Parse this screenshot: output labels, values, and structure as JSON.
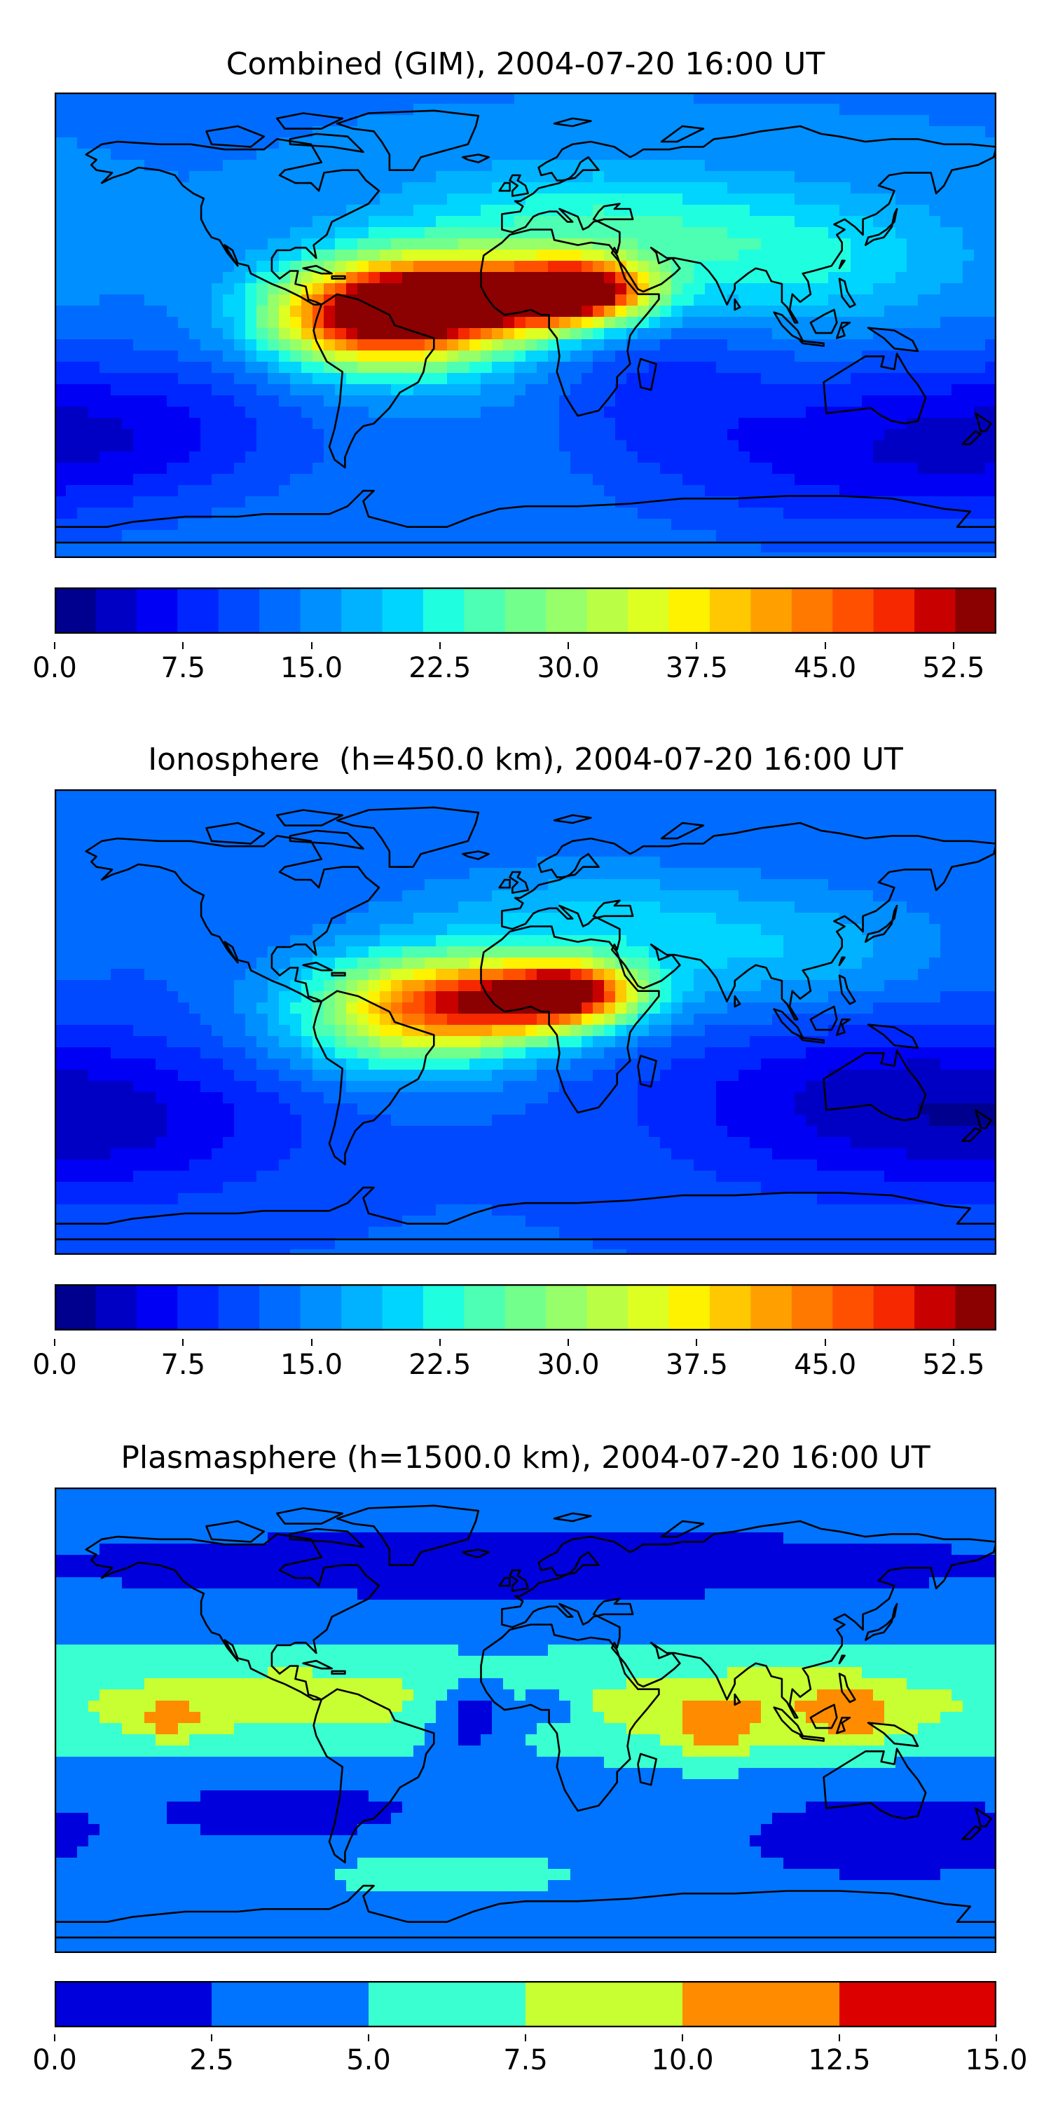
{
  "panels": [
    {
      "title": "Combined (GIM), 2004-07-20 16:00 UT",
      "colorbar": {
        "min": 0,
        "max": 55,
        "step": 2.5,
        "ticks": [
          "0.0",
          "7.5",
          "15.0",
          "22.5",
          "30.0",
          "37.5",
          "45.0",
          "52.5"
        ],
        "tick_values": [
          0,
          7.5,
          15,
          22.5,
          30,
          37.5,
          45,
          52.5
        ],
        "colors": [
          "#00008f",
          "#0000c4",
          "#0000f5",
          "#0026ff",
          "#0049ff",
          "#006cff",
          "#008fff",
          "#00b2ff",
          "#00d5ff",
          "#1fffe0",
          "#4dffb2",
          "#73ff8c",
          "#96ff69",
          "#baff45",
          "#ddff22",
          "#fff200",
          "#ffc800",
          "#ffa000",
          "#ff7800",
          "#ff5000",
          "#f52800",
          "#c80000",
          "#8b0000"
        ]
      },
      "field": {
        "base": 0.26,
        "blobs": [
          {
            "lon": -45,
            "lat": 6,
            "amp": 0.52,
            "slon": 32,
            "slat": 16
          },
          {
            "lon": -10,
            "lat": 10,
            "amp": 0.56,
            "slon": 32,
            "slat": 10
          },
          {
            "lon": 22,
            "lat": 14,
            "amp": 0.58,
            "slon": 18,
            "slat": 8
          },
          {
            "lon": -65,
            "lat": 2,
            "amp": 0.32,
            "slon": 25,
            "slat": 12
          },
          {
            "lon": 20,
            "lat": 40,
            "amp": 0.16,
            "slon": 45,
            "slat": 15
          },
          {
            "lon": 100,
            "lat": 25,
            "amp": 0.15,
            "slon": 45,
            "slat": 18
          },
          {
            "lon": -150,
            "lat": -40,
            "amp": -0.12,
            "slon": 50,
            "slat": 20
          },
          {
            "lon": 130,
            "lat": -50,
            "amp": -0.14,
            "slon": 60,
            "slat": 25
          },
          {
            "lon": 50,
            "lat": -20,
            "amp": -0.08,
            "slon": 30,
            "slat": 25
          }
        ]
      }
    },
    {
      "title": "Ionosphere  (h=450.0 km), 2004-07-20 16:00 UT",
      "colorbar": {
        "min": 0,
        "max": 55,
        "step": 2.5,
        "ticks": [
          "0.0",
          "7.5",
          "15.0",
          "22.5",
          "30.0",
          "37.5",
          "45.0",
          "52.5"
        ],
        "tick_values": [
          0,
          7.5,
          15,
          22.5,
          30,
          37.5,
          45,
          52.5
        ],
        "colors": [
          "#00008f",
          "#0000c4",
          "#0000f5",
          "#0026ff",
          "#0049ff",
          "#006cff",
          "#008fff",
          "#00b2ff",
          "#00d5ff",
          "#1fffe0",
          "#4dffb2",
          "#73ff8c",
          "#96ff69",
          "#baff45",
          "#ddff22",
          "#fff200",
          "#ffc800",
          "#ffa000",
          "#ff7800",
          "#ff5000",
          "#f52800",
          "#c80000",
          "#8b0000"
        ]
      },
      "field": {
        "base": 0.22,
        "blobs": [
          {
            "lon": -45,
            "lat": 4,
            "amp": 0.42,
            "slon": 32,
            "slat": 16
          },
          {
            "lon": -5,
            "lat": 8,
            "amp": 0.48,
            "slon": 30,
            "slat": 11
          },
          {
            "lon": 18,
            "lat": 12,
            "amp": 0.48,
            "slon": 18,
            "slat": 8
          },
          {
            "lon": 20,
            "lat": 40,
            "amp": 0.12,
            "slon": 45,
            "slat": 15
          },
          {
            "lon": 100,
            "lat": 25,
            "amp": 0.12,
            "slon": 45,
            "slat": 18
          },
          {
            "lon": 130,
            "lat": -30,
            "amp": -0.14,
            "slon": 60,
            "slat": 25
          },
          {
            "lon": -150,
            "lat": -40,
            "amp": -0.1,
            "slon": 50,
            "slat": 20
          }
        ]
      }
    },
    {
      "title": "Plasmasphere (h=1500.0 km), 2004-07-20 16:00 UT",
      "colorbar": {
        "min": 0,
        "max": 15,
        "step": 2.5,
        "ticks": [
          "0.0",
          "2.5",
          "5.0",
          "7.5",
          "10.0",
          "12.5",
          "15.0"
        ],
        "tick_values": [
          0,
          2.5,
          5,
          7.5,
          10,
          12.5,
          15
        ],
        "colors": [
          "#0000dc",
          "#0074ff",
          "#3affd0",
          "#c8ff32",
          "#ff8c00",
          "#dc0000"
        ]
      },
      "field": {
        "base": 0.25,
        "blobs": [
          {
            "lon": -90,
            "lat": 8,
            "amp": 0.33,
            "slon": 70,
            "slat": 14
          },
          {
            "lon": 90,
            "lat": 5,
            "amp": 0.38,
            "slon": 55,
            "slat": 14
          },
          {
            "lon": -137,
            "lat": 0,
            "amp": 0.25,
            "slon": 12,
            "slat": 6
          },
          {
            "lon": 72,
            "lat": -5,
            "amp": 0.24,
            "slon": 10,
            "slat": 8
          },
          {
            "lon": 125,
            "lat": 2,
            "amp": 0.25,
            "slon": 10,
            "slat": 8
          },
          {
            "lon": -20,
            "lat": 2,
            "amp": -0.38,
            "slon": 12,
            "slat": 10
          },
          {
            "lon": 10,
            "lat": 5,
            "amp": -0.3,
            "slon": 8,
            "slat": 5
          },
          {
            "lon": 0,
            "lat": 60,
            "amp": -0.18,
            "slon": 150,
            "slat": 10
          },
          {
            "lon": -90,
            "lat": -35,
            "amp": -0.18,
            "slon": 35,
            "slat": 8
          },
          {
            "lon": 140,
            "lat": -45,
            "amp": -0.2,
            "slon": 40,
            "slat": 12
          },
          {
            "lon": -30,
            "lat": -60,
            "amp": 0.16,
            "slon": 40,
            "slat": 7
          }
        ]
      }
    }
  ]
}
